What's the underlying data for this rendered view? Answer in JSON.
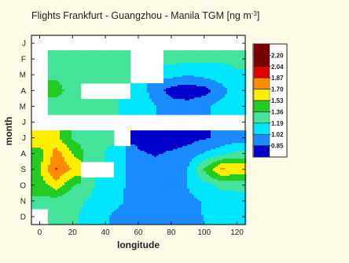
{
  "chart_data": {
    "type": "heatmap",
    "title": "Flights Frankfurt - Guangzhou - Manila TGM [ng m",
    "title_superscript": "-3",
    "title_close": "]",
    "xlabel": "longitude",
    "ylabel": "month",
    "xlim": [
      -5,
      125
    ],
    "x_ticks": [
      "0",
      "20",
      "40",
      "60",
      "80",
      "100",
      "120"
    ],
    "y_ticks": [
      "J",
      "F",
      "M",
      "A",
      "M",
      "J",
      "J",
      "A",
      "S",
      "O",
      "N",
      "D"
    ],
    "grid": false,
    "legend_position": "right",
    "levels": [
      "2.20",
      "2.04",
      "1.87",
      "1.70",
      "1.53",
      "1.36",
      "1.19",
      "1.02",
      "0.85"
    ],
    "level_colors": [
      "#7a0000",
      "#e00000",
      "#ff8c00",
      "#ffee00",
      "#22cc22",
      "#44e39a",
      "#00e6ff",
      "#1a8cff",
      "#0000cc"
    ],
    "no_data_color": "#ffffff",
    "x": [
      0,
      10,
      20,
      30,
      40,
      50,
      60,
      70,
      80,
      90,
      100,
      110,
      120
    ],
    "months": [
      "F",
      "M",
      "A",
      "M",
      "J",
      "A",
      "S",
      "O",
      "N",
      "D"
    ],
    "z": [
      [
        null,
        1.45,
        1.45,
        1.45,
        1.45,
        1.45,
        null,
        null,
        1.42,
        1.4,
        1.4,
        1.38,
        1.38
      ],
      [
        null,
        1.5,
        1.45,
        1.42,
        1.42,
        1.42,
        null,
        null,
        1.25,
        1.2,
        1.25,
        1.3,
        1.35
      ],
      [
        null,
        1.6,
        1.45,
        null,
        null,
        null,
        1.3,
        1.1,
        0.95,
        0.9,
        0.95,
        1.1,
        1.3
      ],
      [
        null,
        1.45,
        1.4,
        1.4,
        1.4,
        1.35,
        1.3,
        1.2,
        1.1,
        1.1,
        1.15,
        1.25,
        1.3
      ],
      [
        1.85,
        1.75,
        1.5,
        1.45,
        1.4,
        null,
        0.95,
        0.92,
        0.9,
        0.95,
        1.0,
        1.05,
        1.1
      ],
      [
        1.6,
        1.95,
        1.7,
        1.45,
        1.35,
        1.25,
        1.05,
        1.0,
        1.05,
        1.1,
        1.2,
        1.3,
        1.4
      ],
      [
        1.7,
        2.05,
        1.85,
        null,
        null,
        1.2,
        1.15,
        1.1,
        1.1,
        1.2,
        1.55,
        1.9,
        1.85
      ],
      [
        1.6,
        1.8,
        1.55,
        1.4,
        1.3,
        1.2,
        1.15,
        1.1,
        1.1,
        1.2,
        1.3,
        1.4,
        1.4
      ],
      [
        1.5,
        1.45,
        1.4,
        1.35,
        1.25,
        1.2,
        1.1,
        1.1,
        1.1,
        1.15,
        1.2,
        1.25,
        1.3
      ],
      [
        null,
        1.45,
        1.4,
        1.3,
        1.2,
        1.15,
        1.1,
        1.05,
        1.05,
        1.1,
        1.2,
        1.25,
        1.3
      ]
    ]
  }
}
